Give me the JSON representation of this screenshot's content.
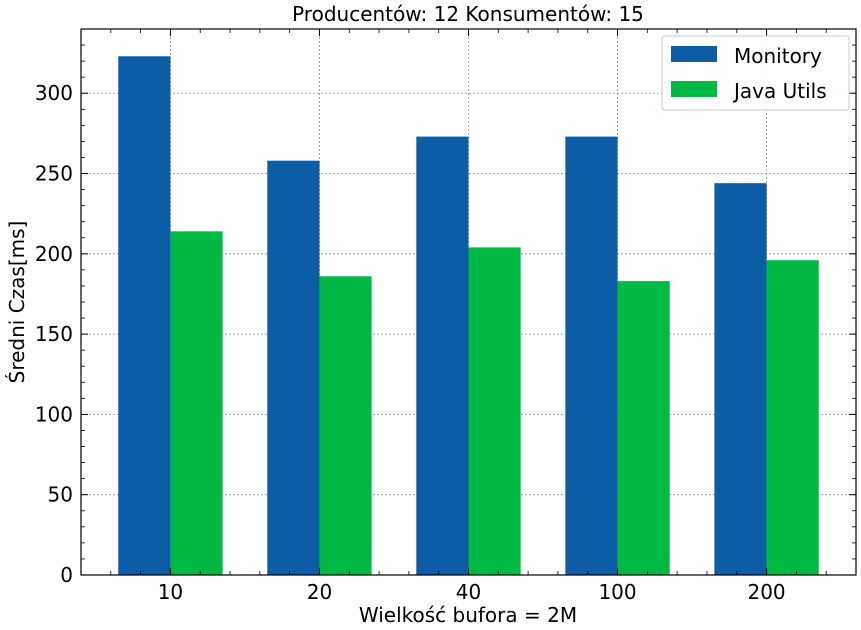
{
  "chart_data": {
    "type": "bar",
    "title": "Producentów: 12 Konsumentów: 15",
    "xlabel": "Wielkość bufora = 2M",
    "ylabel": "Średni Czas[ms]",
    "categories": [
      "10",
      "20",
      "40",
      "100",
      "200"
    ],
    "series": [
      {
        "name": "Monitory",
        "values": [
          323,
          258,
          273,
          273,
          244
        ],
        "color": "#0c5da5"
      },
      {
        "name": "Java Utils",
        "values": [
          214,
          186,
          204,
          183,
          196
        ],
        "color": "#00b945"
      }
    ],
    "ylim": [
      0,
      340
    ],
    "yticks": [
      0,
      50,
      100,
      150,
      200,
      250,
      300
    ],
    "grid": true,
    "legend_position": "top-right"
  }
}
